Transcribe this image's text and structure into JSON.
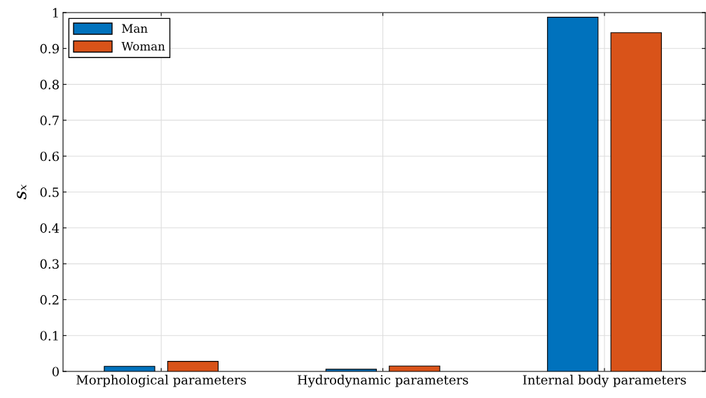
{
  "chart_data": {
    "type": "bar",
    "categories": [
      "Morphological parameters",
      "Hydrodynamic parameters",
      "Internal body parameters"
    ],
    "series": [
      {
        "name": "Man",
        "color": "#0072bd",
        "values": [
          0.014,
          0.006,
          0.987
        ]
      },
      {
        "name": "Woman",
        "color": "#d95319",
        "values": [
          0.028,
          0.015,
          0.944
        ]
      }
    ],
    "ylabel": "sₓ",
    "ylim": [
      0,
      1
    ],
    "yticks": [
      0,
      0.1,
      0.2,
      0.3,
      0.4,
      0.5,
      0.6,
      0.7,
      0.8,
      0.9,
      1
    ],
    "grid": true,
    "legend": "top left"
  }
}
